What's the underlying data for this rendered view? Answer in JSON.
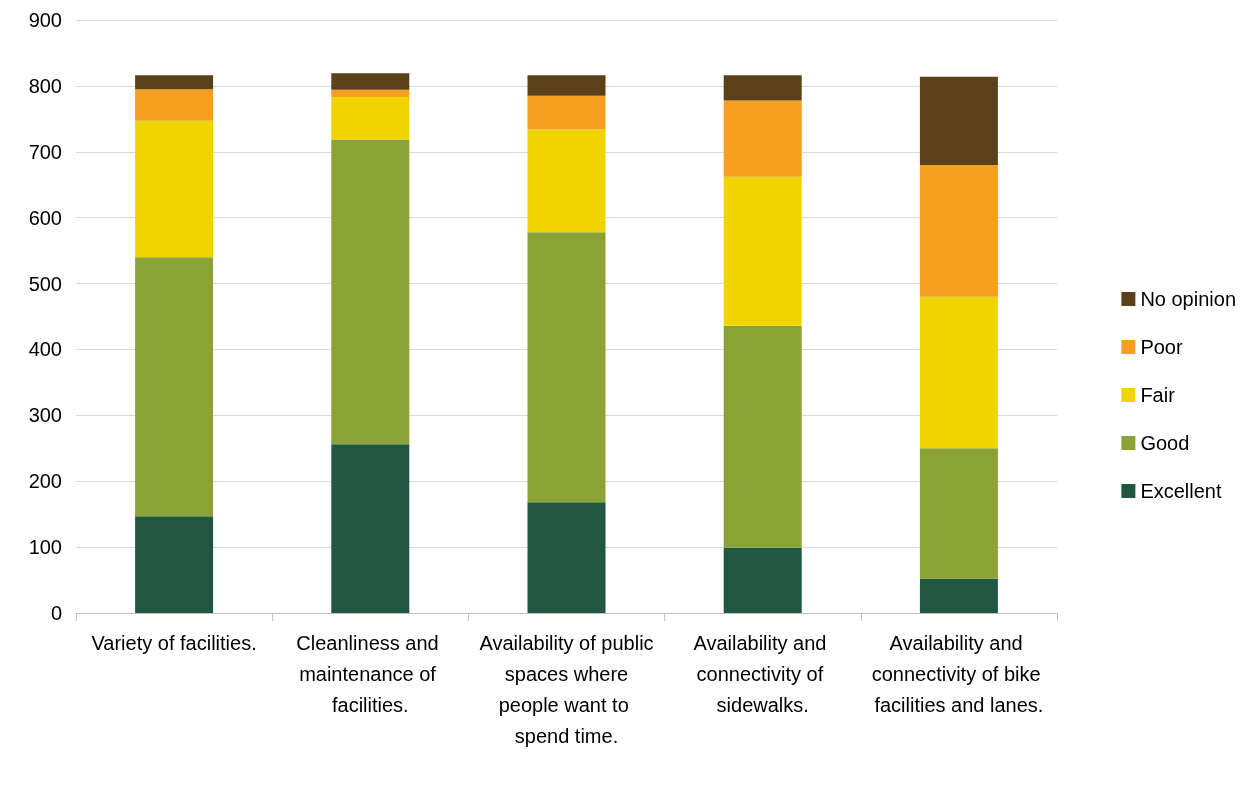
{
  "chart_data": {
    "type": "bar",
    "stacked": true,
    "categories": [
      "Variety of facilities.",
      "Cleanliness and maintenance of facilities.",
      "Availability of public spaces where people want to spend time.",
      "Availability and connectivity of sidewalks.",
      "Availability and connectivity of bike facilities and lanes."
    ],
    "series": [
      {
        "name": "Excellent",
        "color": "#215741",
        "values": [
          147,
          256,
          168,
          99,
          52
        ]
      },
      {
        "name": "Good",
        "color": "#8ba336",
        "values": [
          393,
          462,
          410,
          337,
          198
        ]
      },
      {
        "name": "Fair",
        "color": "#f0d400",
        "values": [
          207,
          65,
          156,
          226,
          230
        ]
      },
      {
        "name": "Poor",
        "color": "#f79f21",
        "values": [
          48,
          11,
          51,
          116,
          200
        ]
      },
      {
        "name": "No opinion",
        "color": "#5a4119",
        "values": [
          21,
          25,
          31,
          38,
          134
        ]
      }
    ],
    "ylim": [
      0,
      900
    ],
    "yticks": [
      0,
      100,
      200,
      300,
      400,
      500,
      600,
      700,
      800,
      900
    ],
    "grid": "y",
    "legend": "right"
  }
}
